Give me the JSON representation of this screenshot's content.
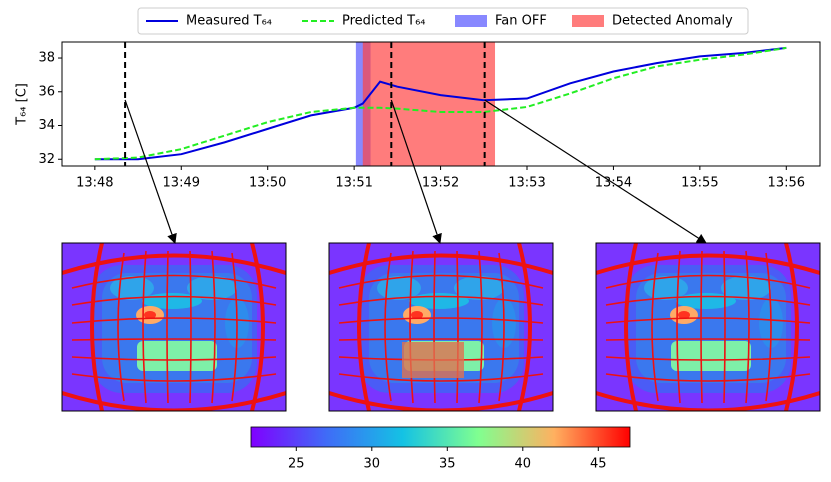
{
  "chart_data": {
    "type": "line",
    "ylabel": "T₆₄ [C]",
    "x": [
      828,
      828.5,
      829,
      829.5,
      830,
      830.5,
      831,
      831.1,
      831.3,
      831.5,
      832,
      832.5,
      833,
      833.5,
      834,
      834.5,
      835,
      835.5,
      836
    ],
    "series": [
      {
        "name": "Measured T₆₄",
        "color": "#0000dd",
        "dash": false,
        "values": [
          32.0,
          32.0,
          32.3,
          33.0,
          33.8,
          34.6,
          35.05,
          35.3,
          36.6,
          36.3,
          35.8,
          35.5,
          35.6,
          36.5,
          37.2,
          37.7,
          38.1,
          38.3,
          38.6
        ]
      },
      {
        "name": "Predicted T₆₄",
        "color": "#22ee22",
        "dash": true,
        "values": [
          32.0,
          32.1,
          32.6,
          33.4,
          34.2,
          34.8,
          35.05,
          35.05,
          35.05,
          35.0,
          34.8,
          34.8,
          35.1,
          35.9,
          36.8,
          37.5,
          37.9,
          38.2,
          38.6
        ]
      }
    ],
    "spans": [
      {
        "name": "Fan OFF",
        "color": "#5555ff",
        "x": [
          831.02,
          831.19
        ]
      },
      {
        "name": "Detected Anomaly",
        "color": "#ff4444",
        "x": [
          831.1,
          832.63
        ]
      }
    ],
    "markers": [
      828.35,
      831.43,
      832.51
    ],
    "xlim": [
      827.62,
      836.39
    ],
    "xticks": [
      {
        "value": 828,
        "label": "13:48"
      },
      {
        "value": 829,
        "label": "13:49"
      },
      {
        "value": 830,
        "label": "13:50"
      },
      {
        "value": 831,
        "label": "13:51"
      },
      {
        "value": 832,
        "label": "13:52"
      },
      {
        "value": 833,
        "label": "13:53"
      },
      {
        "value": 834,
        "label": "13:54"
      },
      {
        "value": 835,
        "label": "13:55"
      },
      {
        "value": 836,
        "label": "13:56"
      }
    ],
    "ylim": [
      31.6,
      38.95
    ],
    "yticks": [
      32,
      34,
      36,
      38
    ],
    "colorbar": {
      "lim": [
        22,
        47.1
      ],
      "ticks": [
        25,
        30,
        35,
        40,
        45
      ]
    },
    "legend": "top"
  }
}
